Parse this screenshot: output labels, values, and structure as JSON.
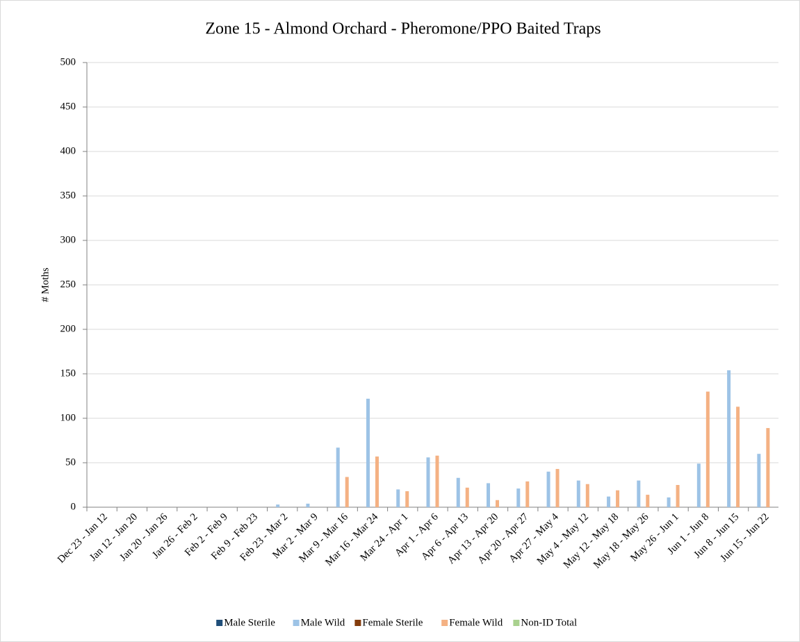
{
  "chart_data": {
    "type": "bar",
    "title": "Zone 15 - Almond Orchard - Pheromone/PPO Baited Traps",
    "ylabel": "# Moths",
    "categories": [
      "Dec 23 - Jan 12",
      "Jan 12 - Jan 20",
      "Jan 20 - Jan 26",
      "Jan 26 - Feb 2",
      "Feb 2 - Feb 9",
      "Feb 9 - Feb 23",
      "Feb 23 - Mar 2",
      "Mar 2 - Mar 9",
      "Mar 9 - Mar 16",
      "Mar 16 - Mar 24",
      "Mar 24 - Apr 1",
      "Apr 1 - Apr 6",
      "Apr 6 - Apr 13",
      "Apr 13 - Apr 20",
      "Apr 20 - Apr 27",
      "Apr 27 - May 4",
      "May 4 - May 12",
      "May 12 - May 18",
      "May 18 - May 26",
      "May 26 - Jun 1",
      "Jun 1 - Jun 8",
      "Jun 8 - Jun 15",
      "Jun 15 - Jun 22"
    ],
    "series": [
      {
        "name": "Male Sterile",
        "color": "#1f4e79",
        "values": [
          0,
          0,
          0,
          0,
          0,
          0,
          0,
          0,
          0,
          0,
          0,
          0,
          0,
          0,
          0,
          0,
          0,
          0,
          0,
          0,
          0,
          0,
          0
        ]
      },
      {
        "name": "Male Wild",
        "color": "#9dc3e6",
        "values": [
          0,
          0,
          0,
          0,
          0,
          0,
          3,
          4,
          67,
          122,
          20,
          56,
          33,
          27,
          21,
          40,
          30,
          12,
          30,
          11,
          49,
          154,
          60
        ]
      },
      {
        "name": "Female Sterile",
        "color": "#843c0c",
        "values": [
          0,
          0,
          0,
          0,
          0,
          0,
          0,
          0,
          0,
          0,
          0,
          0,
          0,
          0,
          0,
          0,
          0,
          0,
          0,
          0,
          0,
          0,
          0
        ]
      },
      {
        "name": "Female Wild",
        "color": "#f4b183",
        "values": [
          0,
          0,
          0,
          0,
          0,
          0,
          0,
          0,
          34,
          57,
          18,
          58,
          22,
          8,
          29,
          43,
          26,
          19,
          14,
          25,
          130,
          113,
          89
        ]
      },
      {
        "name": "Non-ID Total",
        "color": "#a9d18e",
        "values": [
          0,
          0,
          0,
          0,
          0,
          0,
          0,
          0,
          0,
          0,
          0,
          0,
          0,
          0,
          0,
          0,
          0,
          0,
          0,
          0,
          0,
          0,
          0
        ]
      }
    ],
    "ylim": [
      0,
      500
    ],
    "yticks": [
      0,
      50,
      100,
      150,
      200,
      250,
      300,
      350,
      400,
      450,
      500
    ],
    "grid": true,
    "legend": "bottom"
  }
}
